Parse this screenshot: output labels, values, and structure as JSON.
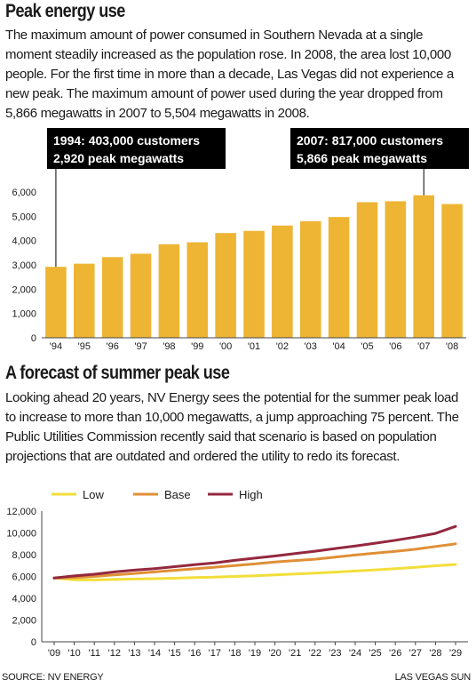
{
  "section1": {
    "title": "Peak energy use",
    "intro": "The maximum amount of power consumed in Southern Nevada at a single moment steadily increased as the population rose. In 2008, the area lost 10,000 people. For the first time in more than a decade, Las Vegas did not experience a new peak. The maximum amount of power used during the year dropped from 5,866 megawatts in 2007 to 5,504 megawatts in 2008."
  },
  "section2": {
    "title": "A forecast of summer peak use",
    "intro": "Looking ahead 20 years, NV Energy sees the potential for the summer peak load to increase to more than 10,000 megawatts, a jump approaching 75 percent. The Public Utilities Commission recently said that scenario is based on population projections that are outdated and ordered the utility to redo its forecast."
  },
  "footer": {
    "source": "SOURCE: NV Energy",
    "credit": "LAS VEGAS SUN"
  },
  "colors": {
    "bar": "#EDB533",
    "low": "#F2DE3A",
    "base": "#E08F36",
    "high": "#94283E",
    "annotation_bg": "#000000",
    "axis": "#444444"
  },
  "chart_data": [
    {
      "type": "bar",
      "title": "",
      "categories": [
        "'94",
        "'95",
        "'96",
        "'97",
        "'98",
        "'99",
        "'00",
        "'01",
        "'02",
        "'03",
        "'04",
        "'05",
        "'06",
        "'07",
        "'08"
      ],
      "values": [
        2920,
        3050,
        3320,
        3460,
        3850,
        3930,
        4310,
        4400,
        4620,
        4800,
        4970,
        5580,
        5620,
        5866,
        5504
      ],
      "y_ticks": [
        "0",
        "1,000",
        "2,000",
        "3,000",
        "4,000",
        "5,000",
        "6,000"
      ],
      "ylim": [
        0,
        6000
      ],
      "grid": false,
      "annotations": [
        {
          "category_index": 0,
          "lines": [
            "1994: 403,000 customers",
            "2,920 peak megawatts"
          ]
        },
        {
          "category_index": 13,
          "lines": [
            "2007: 817,000 customers",
            "5,866 peak megawatts"
          ]
        }
      ]
    },
    {
      "type": "line",
      "title": "",
      "x": [
        "'09",
        "'10",
        "'11",
        "'12",
        "'13",
        "'14",
        "'15",
        "'16",
        "'17",
        "'18",
        "'19",
        "'20",
        "'21",
        "'22",
        "'23",
        "'24",
        "'25",
        "'26",
        "'27",
        "'28",
        "'29"
      ],
      "y_ticks": [
        "0",
        "2,000",
        "4,000",
        "6,000",
        "8,000",
        "10,000",
        "12,000"
      ],
      "ylim": [
        0,
        12000
      ],
      "grid": false,
      "legend_position": "top",
      "series": [
        {
          "name": "Low",
          "color_key": "low",
          "values": [
            5850,
            5700,
            5680,
            5720,
            5760,
            5800,
            5840,
            5890,
            5940,
            6000,
            6060,
            6140,
            6220,
            6300,
            6400,
            6500,
            6600,
            6720,
            6840,
            6980,
            7100
          ]
        },
        {
          "name": "Base",
          "color_key": "base",
          "values": [
            5850,
            5900,
            6000,
            6150,
            6280,
            6420,
            6560,
            6700,
            6850,
            7000,
            7150,
            7320,
            7460,
            7580,
            7780,
            7970,
            8150,
            8300,
            8500,
            8750,
            9000
          ]
        },
        {
          "name": "High",
          "color_key": "high",
          "values": [
            5850,
            6050,
            6200,
            6420,
            6580,
            6720,
            6900,
            7080,
            7250,
            7480,
            7680,
            7880,
            8100,
            8320,
            8560,
            8800,
            9050,
            9320,
            9620,
            9950,
            10600
          ]
        }
      ]
    }
  ]
}
